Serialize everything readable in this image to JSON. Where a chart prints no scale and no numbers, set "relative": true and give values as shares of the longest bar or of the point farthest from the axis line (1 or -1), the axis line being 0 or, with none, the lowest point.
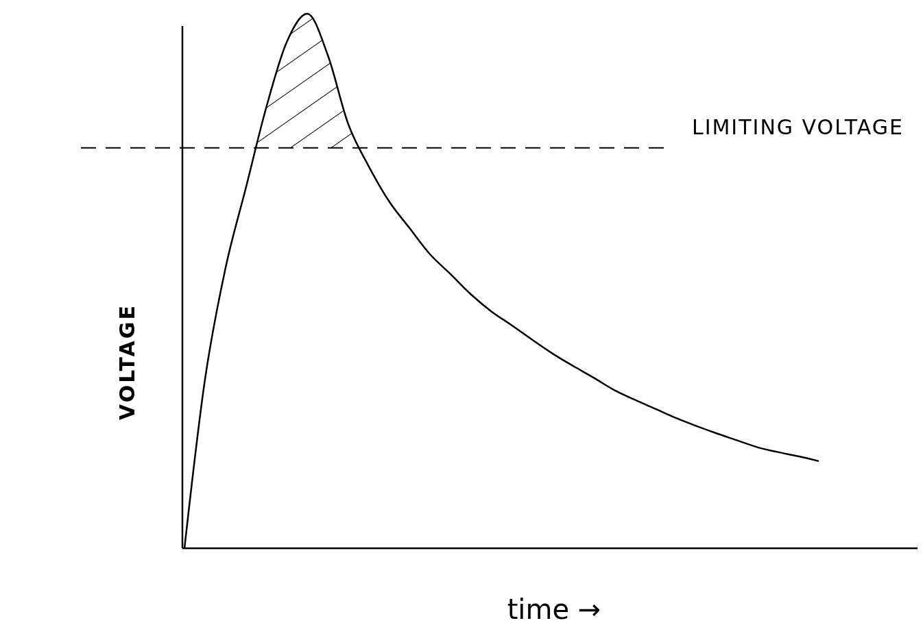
{
  "chart_data": {
    "type": "line",
    "relative": true,
    "xlabel": "time →",
    "ylabel": "VOLTAGE",
    "marker": "none",
    "categories": [
      null,
      null,
      null,
      null,
      null,
      null,
      null,
      null,
      null,
      null,
      null,
      null,
      null,
      null,
      null,
      null,
      null,
      null,
      null,
      null,
      null,
      null,
      null,
      null,
      null,
      null,
      null,
      null,
      null,
      null,
      null,
      null
    ],
    "series": [
      {
        "color": "#000000",
        "values": [
          0,
          0.315,
          0.523,
          0.674,
          0.825,
          0.947,
          1,
          0.923,
          0.794,
          0.715,
          0.649,
          0.599,
          0.55,
          0.513,
          0.475,
          0.443,
          0.417,
          0.39,
          0.364,
          0.341,
          0.319,
          0.296,
          0.278,
          0.261,
          0.244,
          0.229,
          0.215,
          0.202,
          0.189,
          0.18,
          0.172,
          0.163
        ],
        "lower": [
          null,
          null,
          null,
          0.749,
          0.749,
          0.749,
          0.749,
          0.749,
          0.749,
          0.749,
          null,
          null,
          null,
          null,
          null,
          null,
          null,
          null,
          null,
          null,
          null,
          null,
          null,
          null,
          null,
          null,
          null,
          null,
          null,
          null,
          null,
          null
        ],
        "upper": [
          null,
          null,
          null,
          0.674,
          0.825,
          0.947,
          1,
          0.923,
          0.794,
          0.715,
          null,
          null,
          null,
          null,
          null,
          null,
          null,
          null,
          null,
          null,
          null,
          null,
          null,
          null,
          null,
          null,
          null,
          null,
          null,
          null,
          null,
          null
        ]
      }
    ],
    "ref_lines": [
      {
        "axis": "y",
        "value": 0.749,
        "label": "LIMITING VOLTAGE",
        "line_style": "dashed"
      }
    ]
  }
}
